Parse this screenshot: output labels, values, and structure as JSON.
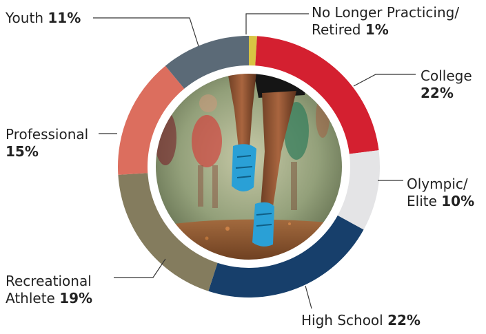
{
  "chart_data": {
    "type": "pie",
    "variant": "donut",
    "title": "",
    "categories": [
      "No Longer Practicing/ Retired",
      "College",
      "Olympic/ Elite",
      "High School",
      "Recreational Athlete",
      "Professional",
      "Youth"
    ],
    "values": [
      1,
      22,
      10,
      22,
      19,
      15,
      11
    ],
    "colors": [
      "#d8c443",
      "#d42030",
      "#e4e4e6",
      "#173f6b",
      "#847c5e",
      "#dc6e5e",
      "#5b6a77"
    ],
    "unit": "%",
    "labels": [
      {
        "text": "No Longer Practicing/",
        "text2": "Retired",
        "value": "1%"
      },
      {
        "text": "College",
        "value": "22%"
      },
      {
        "text": "Olympic/",
        "text2": "Elite",
        "value": "10%"
      },
      {
        "text": "High School",
        "value": "22%"
      },
      {
        "text": "Recreational",
        "text2": "Athlete",
        "value": "19%"
      },
      {
        "text": "Professional",
        "value": "15%"
      },
      {
        "text": "Youth",
        "value": "11%"
      }
    ],
    "center_image": "photo of runners' legs and shoes kicking up dirt on a track"
  }
}
